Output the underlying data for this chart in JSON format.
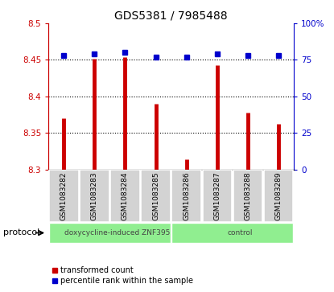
{
  "title": "GDS5381 / 7985488",
  "samples": [
    "GSM1083282",
    "GSM1083283",
    "GSM1083284",
    "GSM1083285",
    "GSM1083286",
    "GSM1083287",
    "GSM1083288",
    "GSM1083289"
  ],
  "red_values": [
    8.37,
    8.452,
    8.454,
    8.39,
    8.314,
    8.443,
    8.378,
    8.362
  ],
  "blue_values": [
    78,
    79,
    80,
    77,
    77,
    79,
    78,
    78
  ],
  "ylim_left": [
    8.3,
    8.5
  ],
  "ylim_right": [
    0,
    100
  ],
  "yticks_left": [
    8.3,
    8.35,
    8.4,
    8.45,
    8.5
  ],
  "yticks_right": [
    0,
    25,
    50,
    75,
    100
  ],
  "protocol_groups": [
    {
      "label": "doxycycline-induced ZNF395",
      "start": 0,
      "end": 4,
      "color": "#90ee90"
    },
    {
      "label": "control",
      "start": 4,
      "end": 8,
      "color": "#90ee90"
    }
  ],
  "protocol_label": "protocol",
  "red_color": "#cc0000",
  "blue_color": "#0000cc",
  "bar_bottom": 8.3,
  "tick_color_left": "#cc0000",
  "tick_color_right": "#0000cc",
  "bg_plot": "#ffffff",
  "bg_xticklabel": "#d3d3d3",
  "legend_red": "transformed count",
  "legend_blue": "percentile rank within the sample",
  "grid_yticks": [
    8.35,
    8.4,
    8.45
  ]
}
